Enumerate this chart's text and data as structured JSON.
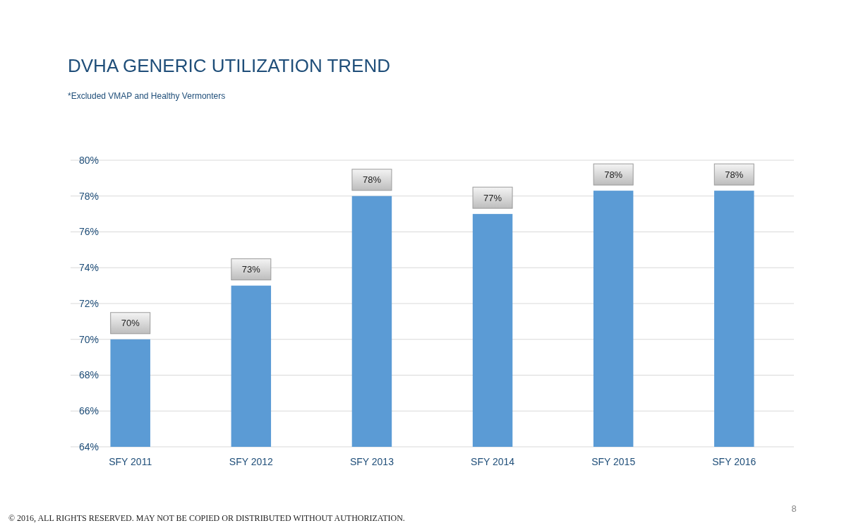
{
  "chart_data": {
    "type": "bar",
    "title": "DVHA GENERIC UTILIZATION TREND",
    "subtitle": "*Excluded VMAP and Healthy Vermonters",
    "categories": [
      "SFY 2011",
      "SFY 2012",
      "SFY 2013",
      "SFY 2014",
      "SFY 2015",
      "SFY 2016"
    ],
    "values": [
      70,
      73,
      78,
      77,
      78.3,
      78.3
    ],
    "color": "#5b9bd5",
    "value_labels": [
      "70%",
      "73%",
      "78%",
      "77%",
      "78%",
      "78%"
    ],
    "ylim": [
      64,
      80
    ],
    "yticks": [
      {
        "value": 64,
        "label": "64%"
      },
      {
        "value": 66,
        "label": "66%"
      },
      {
        "value": 68,
        "label": "68%"
      },
      {
        "value": 70,
        "label": "70%"
      },
      {
        "value": 72,
        "label": "72%"
      },
      {
        "value": 74,
        "label": "74%"
      },
      {
        "value": 76,
        "label": "76%"
      },
      {
        "value": 78,
        "label": "78%"
      },
      {
        "value": 80,
        "label": "80%"
      }
    ],
    "grid": "y",
    "annotations": [
      "8",
      "© 2016, ALL RIGHTS RESERVED. MAY NOT BE COPIED OR DISTRIBUTED WITHOUT AUTHORIZATION."
    ]
  }
}
